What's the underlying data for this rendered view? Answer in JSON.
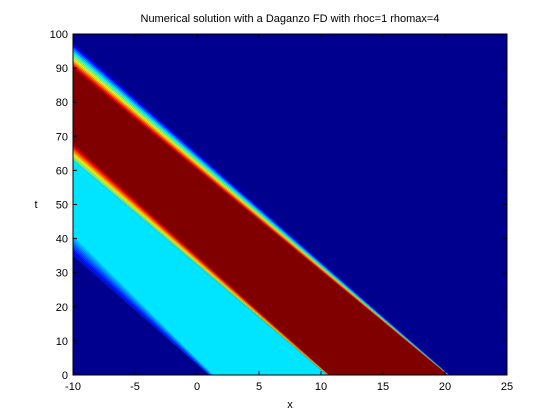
{
  "chart_data": {
    "type": "heatmap",
    "title": "Numerical solution with a Daganzo FD with rhoc=1 rhomax=4",
    "xlabel": "x",
    "ylabel": "t",
    "xlim": [
      -10,
      25
    ],
    "ylim": [
      0,
      100
    ],
    "xticks": [
      "-10",
      "-5",
      "0",
      "5",
      "10",
      "15",
      "20",
      "25"
    ],
    "yticks": [
      "0",
      "10",
      "20",
      "30",
      "40",
      "50",
      "60",
      "70",
      "80",
      "90",
      "100"
    ],
    "grid": false,
    "colormap": "jet",
    "color_range": [
      0,
      4
    ],
    "regions": [
      {
        "description": "jam (max density)",
        "value": 4,
        "boundaries_x_at_t": {
          "lower_edge": [
            [
              0,
              10.5
            ],
            [
              63,
              -10
            ]
          ],
          "upper_edge": [
            [
              0,
              20.2
            ],
            [
              90,
              -10
            ]
          ]
        }
      },
      {
        "description": "intermediate density",
        "value": 1.4,
        "boundaries_x_at_t": {
          "lower_edge": [
            [
              0,
              1.0
            ],
            [
              35,
              -10
            ]
          ],
          "upper_edge": [
            [
              0,
              10.5
            ],
            [
              63,
              -10
            ]
          ]
        }
      },
      {
        "description": "empty road",
        "value": 0,
        "where": "above the jam and below the intermediate band"
      }
    ]
  }
}
